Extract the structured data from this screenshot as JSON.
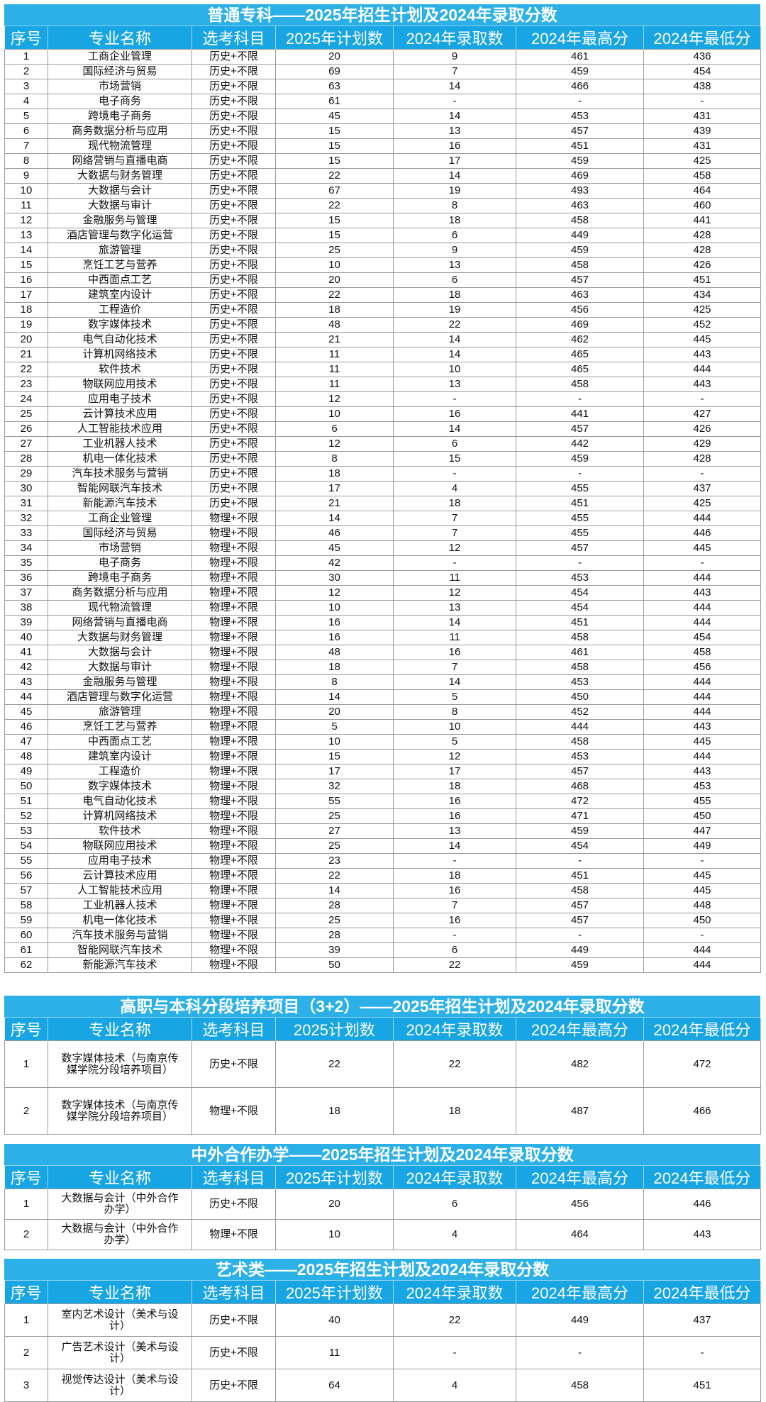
{
  "headers_plan_year": [
    "序号",
    "专业名称",
    "选考科目",
    "2025年计划数",
    "2024年录取数",
    "2024年最高分",
    "2024年最低分"
  ],
  "sections": [
    {
      "title": "普通专科——2025年招生计划及2024年录取分数",
      "headers": [
        "序号",
        "专业名称",
        "选考科目",
        "2025年计划数",
        "2024年录取数",
        "2024年最高分",
        "2024年最低分"
      ],
      "rows": [
        [
          "1",
          "工商企业管理",
          "历史+不限",
          "20",
          "9",
          "461",
          "436"
        ],
        [
          "2",
          "国际经济与贸易",
          "历史+不限",
          "69",
          "7",
          "459",
          "454"
        ],
        [
          "3",
          "市场营销",
          "历史+不限",
          "63",
          "14",
          "466",
          "438"
        ],
        [
          "4",
          "电子商务",
          "历史+不限",
          "61",
          "-",
          "-",
          "-"
        ],
        [
          "5",
          "跨境电子商务",
          "历史+不限",
          "45",
          "14",
          "453",
          "431"
        ],
        [
          "6",
          "商务数据分析与应用",
          "历史+不限",
          "15",
          "13",
          "457",
          "439"
        ],
        [
          "7",
          "现代物流管理",
          "历史+不限",
          "15",
          "16",
          "451",
          "431"
        ],
        [
          "8",
          "网络营销与直播电商",
          "历史+不限",
          "15",
          "17",
          "459",
          "425"
        ],
        [
          "9",
          "大数据与财务管理",
          "历史+不限",
          "22",
          "14",
          "469",
          "458"
        ],
        [
          "10",
          "大数据与会计",
          "历史+不限",
          "67",
          "19",
          "493",
          "464"
        ],
        [
          "11",
          "大数据与审计",
          "历史+不限",
          "22",
          "8",
          "463",
          "460"
        ],
        [
          "12",
          "金融服务与管理",
          "历史+不限",
          "15",
          "18",
          "458",
          "441"
        ],
        [
          "13",
          "酒店管理与数字化运营",
          "历史+不限",
          "15",
          "6",
          "449",
          "428"
        ],
        [
          "14",
          "旅游管理",
          "历史+不限",
          "25",
          "9",
          "459",
          "428"
        ],
        [
          "15",
          "烹饪工艺与营养",
          "历史+不限",
          "10",
          "13",
          "458",
          "426"
        ],
        [
          "16",
          "中西面点工艺",
          "历史+不限",
          "20",
          "6",
          "457",
          "451"
        ],
        [
          "17",
          "建筑室内设计",
          "历史+不限",
          "22",
          "18",
          "463",
          "434"
        ],
        [
          "18",
          "工程造价",
          "历史+不限",
          "18",
          "19",
          "456",
          "425"
        ],
        [
          "19",
          "数字媒体技术",
          "历史+不限",
          "48",
          "22",
          "469",
          "452"
        ],
        [
          "20",
          "电气自动化技术",
          "历史+不限",
          "21",
          "14",
          "462",
          "445"
        ],
        [
          "21",
          "计算机网络技术",
          "历史+不限",
          "11",
          "14",
          "465",
          "443"
        ],
        [
          "22",
          "软件技术",
          "历史+不限",
          "11",
          "10",
          "465",
          "444"
        ],
        [
          "23",
          "物联网应用技术",
          "历史+不限",
          "11",
          "13",
          "458",
          "443"
        ],
        [
          "24",
          "应用电子技术",
          "历史+不限",
          "12",
          "-",
          "-",
          "-"
        ],
        [
          "25",
          "云计算技术应用",
          "历史+不限",
          "10",
          "16",
          "441",
          "427"
        ],
        [
          "26",
          "人工智能技术应用",
          "历史+不限",
          "6",
          "14",
          "457",
          "426"
        ],
        [
          "27",
          "工业机器人技术",
          "历史+不限",
          "12",
          "6",
          "442",
          "429"
        ],
        [
          "28",
          "机电一体化技术",
          "历史+不限",
          "8",
          "15",
          "459",
          "428"
        ],
        [
          "29",
          "汽车技术服务与营销",
          "历史+不限",
          "18",
          "-",
          "-",
          "-"
        ],
        [
          "30",
          "智能网联汽车技术",
          "历史+不限",
          "17",
          "4",
          "455",
          "437"
        ],
        [
          "31",
          "新能源汽车技术",
          "历史+不限",
          "21",
          "18",
          "451",
          "425"
        ],
        [
          "32",
          "工商企业管理",
          "物理+不限",
          "14",
          "7",
          "455",
          "444"
        ],
        [
          "33",
          "国际经济与贸易",
          "物理+不限",
          "46",
          "7",
          "455",
          "446"
        ],
        [
          "34",
          "市场营销",
          "物理+不限",
          "45",
          "12",
          "457",
          "445"
        ],
        [
          "35",
          "电子商务",
          "物理+不限",
          "42",
          "-",
          "-",
          "-"
        ],
        [
          "36",
          "跨境电子商务",
          "物理+不限",
          "30",
          "11",
          "453",
          "444"
        ],
        [
          "37",
          "商务数据分析与应用",
          "物理+不限",
          "12",
          "12",
          "454",
          "443"
        ],
        [
          "38",
          "现代物流管理",
          "物理+不限",
          "10",
          "13",
          "454",
          "444"
        ],
        [
          "39",
          "网络营销与直播电商",
          "物理+不限",
          "16",
          "14",
          "451",
          "444"
        ],
        [
          "40",
          "大数据与财务管理",
          "物理+不限",
          "16",
          "11",
          "458",
          "454"
        ],
        [
          "41",
          "大数据与会计",
          "物理+不限",
          "48",
          "16",
          "461",
          "458"
        ],
        [
          "42",
          "大数据与审计",
          "物理+不限",
          "18",
          "7",
          "458",
          "456"
        ],
        [
          "43",
          "金融服务与管理",
          "物理+不限",
          "8",
          "14",
          "453",
          "444"
        ],
        [
          "44",
          "酒店管理与数字化运营",
          "物理+不限",
          "14",
          "5",
          "450",
          "444"
        ],
        [
          "45",
          "旅游管理",
          "物理+不限",
          "20",
          "8",
          "452",
          "444"
        ],
        [
          "46",
          "烹饪工艺与营养",
          "物理+不限",
          "5",
          "10",
          "444",
          "443"
        ],
        [
          "47",
          "中西面点工艺",
          "物理+不限",
          "10",
          "5",
          "458",
          "445"
        ],
        [
          "48",
          "建筑室内设计",
          "物理+不限",
          "15",
          "12",
          "453",
          "444"
        ],
        [
          "49",
          "工程造价",
          "物理+不限",
          "17",
          "17",
          "457",
          "443"
        ],
        [
          "50",
          "数字媒体技术",
          "物理+不限",
          "32",
          "18",
          "468",
          "453"
        ],
        [
          "51",
          "电气自动化技术",
          "物理+不限",
          "55",
          "16",
          "472",
          "455"
        ],
        [
          "52",
          "计算机网络技术",
          "物理+不限",
          "25",
          "16",
          "471",
          "450"
        ],
        [
          "53",
          "软件技术",
          "物理+不限",
          "27",
          "13",
          "459",
          "447"
        ],
        [
          "54",
          "物联网应用技术",
          "物理+不限",
          "25",
          "14",
          "454",
          "449"
        ],
        [
          "55",
          "应用电子技术",
          "物理+不限",
          "23",
          "-",
          "-",
          "-"
        ],
        [
          "56",
          "云计算技术应用",
          "物理+不限",
          "22",
          "18",
          "451",
          "445"
        ],
        [
          "57",
          "人工智能技术应用",
          "物理+不限",
          "14",
          "16",
          "458",
          "445"
        ],
        [
          "58",
          "工业机器人技术",
          "物理+不限",
          "28",
          "7",
          "457",
          "448"
        ],
        [
          "59",
          "机电一体化技术",
          "物理+不限",
          "25",
          "16",
          "457",
          "450"
        ],
        [
          "60",
          "汽车技术服务与营销",
          "物理+不限",
          "28",
          "-",
          "-",
          "-"
        ],
        [
          "61",
          "智能网联汽车技术",
          "物理+不限",
          "39",
          "6",
          "449",
          "444"
        ],
        [
          "62",
          "新能源汽车技术",
          "物理+不限",
          "50",
          "22",
          "459",
          "444"
        ]
      ]
    },
    {
      "title": "高职与本科分段培养项目（3+2）——2025年招生计划及2024年录取分数",
      "headers": [
        "序号",
        "专业名称",
        "选考科目",
        "2025计划数",
        "2024年录取数",
        "2024年最高分",
        "2024年最低分"
      ],
      "rows": [
        [
          "1",
          "数字媒体技术（与南京传媒学院分段培养项目）",
          "历史+不限",
          "22",
          "22",
          "482",
          "472"
        ],
        [
          "2",
          "数字媒体技术（与南京传媒学院分段培养项目）",
          "物理+不限",
          "18",
          "18",
          "487",
          "466"
        ]
      ]
    },
    {
      "title": "中外合作办学——2025年招生计划及2024年录取分数",
      "headers": [
        "序号",
        "专业名称",
        "选考科目",
        "2025年计划数",
        "2024年录取数",
        "2024年最高分",
        "2024年最低分"
      ],
      "rows": [
        [
          "1",
          "大数据与会计（中外合作办学）",
          "历史+不限",
          "20",
          "6",
          "456",
          "446"
        ],
        [
          "2",
          "大数据与会计（中外合作办学）",
          "物理+不限",
          "10",
          "4",
          "464",
          "443"
        ]
      ]
    },
    {
      "title": "艺术类——2025年招生计划及2024年录取分数",
      "headers": [
        "序号",
        "专业名称",
        "选考科目",
        "2025年计划数",
        "2024年录取数",
        "2024年最高分",
        "2024年最低分"
      ],
      "rows": [
        [
          "1",
          "室内艺术设计（美术与设计）",
          "历史+不限",
          "40",
          "22",
          "449",
          "437"
        ],
        [
          "2",
          "广告艺术设计（美术与设计）",
          "历史+不限",
          "11",
          "-",
          "-",
          "-"
        ],
        [
          "3",
          "视觉传达设计（美术与设计）",
          "历史+不限",
          "64",
          "4",
          "458",
          "451"
        ]
      ]
    }
  ],
  "colors": {
    "title_bar": "#2cb0e8",
    "header_bar": "#17a5e3",
    "grid": "#9a9a9a"
  }
}
